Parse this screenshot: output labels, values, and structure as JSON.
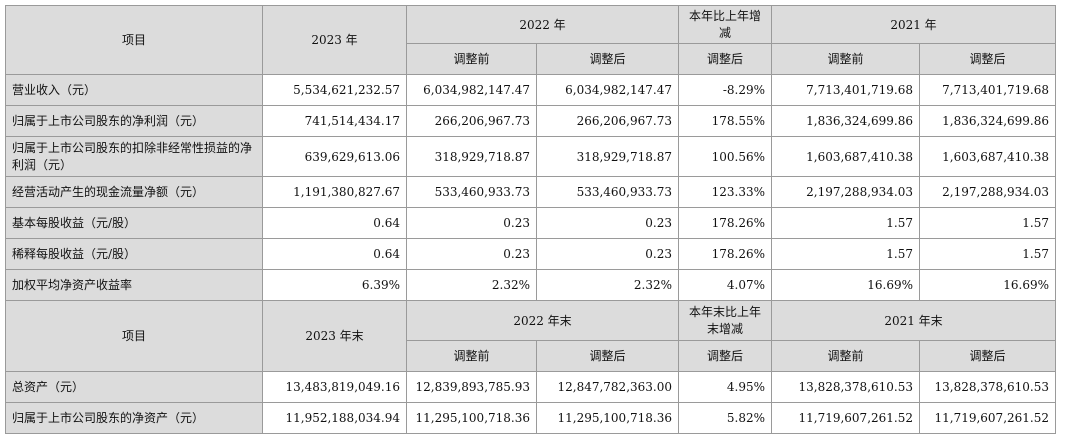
{
  "header1": {
    "item": "项目",
    "y2023": "2023 年",
    "y2022": "2022 年",
    "change": "本年比上年增减",
    "y2021": "2021 年",
    "before": "调整前",
    "after": "调整后",
    "change_after": "调整后"
  },
  "rows1": [
    {
      "label": "营业收入（元）",
      "v2023": "5,534,621,232.57",
      "v2022_before": "6,034,982,147.47",
      "v2022_after": "6,034,982,147.47",
      "change": "-8.29%",
      "v2021_before": "7,713,401,719.68",
      "v2021_after": "7,713,401,719.68"
    },
    {
      "label": "归属于上市公司股东的净利润（元）",
      "v2023": "741,514,434.17",
      "v2022_before": "266,206,967.73",
      "v2022_after": "266,206,967.73",
      "change": "178.55%",
      "v2021_before": "1,836,324,699.86",
      "v2021_after": "1,836,324,699.86"
    },
    {
      "label": "归属于上市公司股东的扣除非经常性损益的净利润（元）",
      "v2023": "639,629,613.06",
      "v2022_before": "318,929,718.87",
      "v2022_after": "318,929,718.87",
      "change": "100.56%",
      "v2021_before": "1,603,687,410.38",
      "v2021_after": "1,603,687,410.38"
    },
    {
      "label": "经营活动产生的现金流量净额（元）",
      "v2023": "1,191,380,827.67",
      "v2022_before": "533,460,933.73",
      "v2022_after": "533,460,933.73",
      "change": "123.33%",
      "v2021_before": "2,197,288,934.03",
      "v2021_after": "2,197,288,934.03"
    },
    {
      "label": "基本每股收益（元/股）",
      "v2023": "0.64",
      "v2022_before": "0.23",
      "v2022_after": "0.23",
      "change": "178.26%",
      "v2021_before": "1.57",
      "v2021_after": "1.57"
    },
    {
      "label": "稀释每股收益（元/股）",
      "v2023": "0.64",
      "v2022_before": "0.23",
      "v2022_after": "0.23",
      "change": "178.26%",
      "v2021_before": "1.57",
      "v2021_after": "1.57"
    },
    {
      "label": "加权平均净资产收益率",
      "v2023": "6.39%",
      "v2022_before": "2.32%",
      "v2022_after": "2.32%",
      "change": "4.07%",
      "v2021_before": "16.69%",
      "v2021_after": "16.69%"
    }
  ],
  "header2": {
    "item": "项目",
    "y2023": "2023 年末",
    "y2022": "2022 年末",
    "change": "本年末比上年末增减",
    "y2021": "2021 年末",
    "before": "调整前",
    "after": "调整后",
    "change_after": "调整后"
  },
  "rows2": [
    {
      "label": "总资产（元）",
      "v2023": "13,483,819,049.16",
      "v2022_before": "12,839,893,785.93",
      "v2022_after": "12,847,782,363.00",
      "change": "4.95%",
      "v2021_before": "13,828,378,610.53",
      "v2021_after": "13,828,378,610.53"
    },
    {
      "label": "归属于上市公司股东的净资产（元）",
      "v2023": "11,952,188,034.94",
      "v2022_before": "11,295,100,718.36",
      "v2022_after": "11,295,100,718.36",
      "change": "5.82%",
      "v2021_before": "11,719,607,261.52",
      "v2021_after": "11,719,607,261.52"
    }
  ]
}
